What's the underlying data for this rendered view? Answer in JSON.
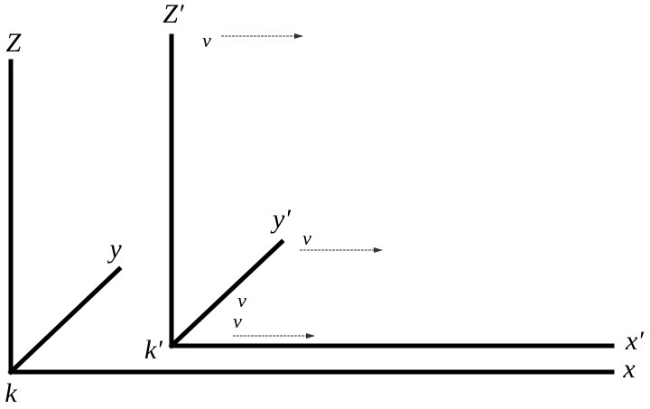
{
  "frames": [
    {
      "name": "k",
      "z_label": "Z",
      "y_label": "y",
      "x_label": "x"
    },
    {
      "name": "k′",
      "z_label": "Z′",
      "y_label": "y′",
      "x_label": "x′"
    }
  ],
  "velocity_labels": [
    "v",
    "v",
    "v",
    "v"
  ]
}
